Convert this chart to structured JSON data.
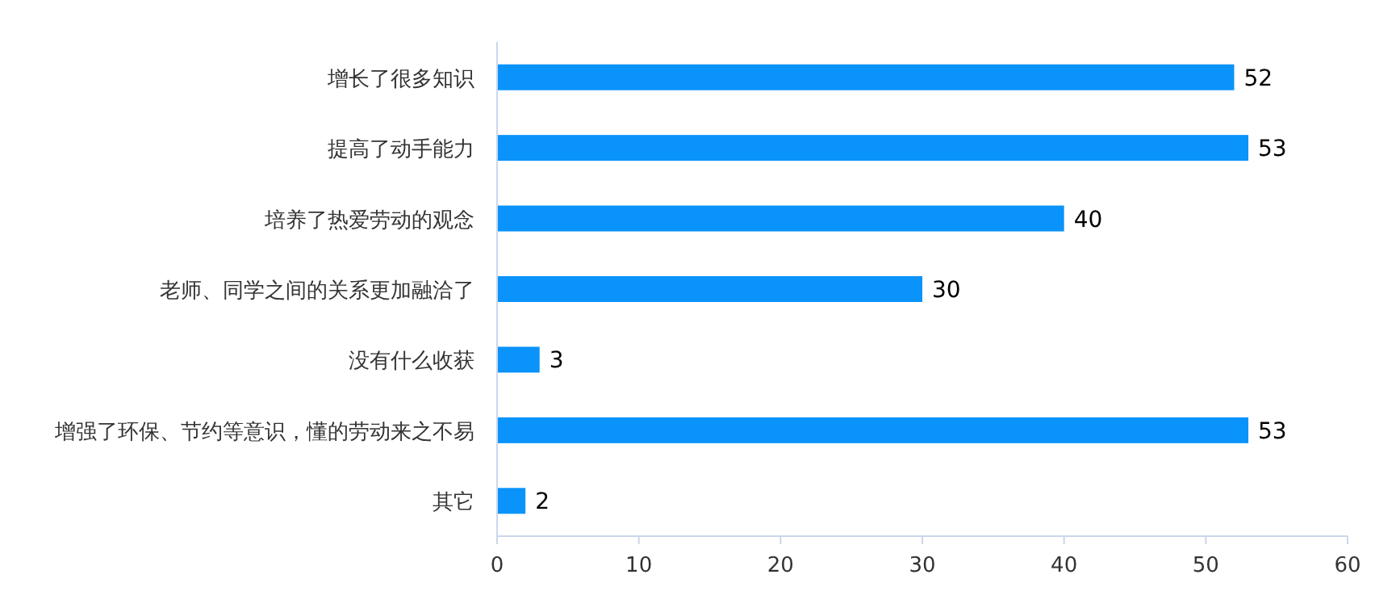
{
  "chart_data": {
    "type": "bar",
    "orientation": "horizontal",
    "categories": [
      "增长了很多知识",
      "提高了动手能力",
      "培养了热爱劳动的观念",
      "老师、同学之间的关系更加融洽了",
      "没有什么收获",
      "增强了环保、节约等意识，懂的劳动来之不易",
      "其它"
    ],
    "values": [
      52,
      53,
      40,
      30,
      3,
      53,
      2
    ],
    "color": "#0a93fa",
    "xlim": [
      0,
      60
    ],
    "xticks": [
      0,
      10,
      20,
      30,
      40,
      50,
      60
    ],
    "data_labels": true
  }
}
